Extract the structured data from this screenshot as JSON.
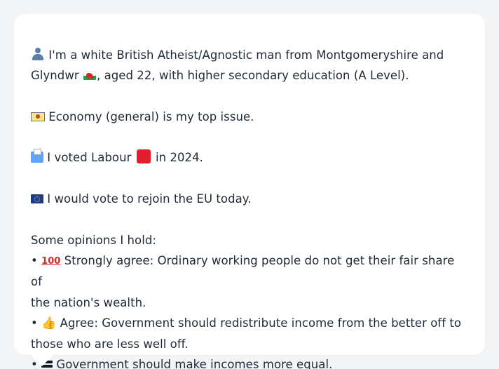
{
  "profile": {
    "line1_a": "I'm a white British Atheist/Agnostic man from Montgomeryshire and",
    "line1_b": "Glyndwr",
    "line1_c": ", aged 22, with higher secondary education (A Level).",
    "economy": "Economy (general) is my top issue.",
    "vote_a": "I voted Labour",
    "vote_b": "in 2024.",
    "eu": "I would vote to rejoin the EU today."
  },
  "opinions": {
    "heading": "Some opinions I hold:",
    "bullet": "•",
    "items": [
      {
        "icon": "hundred-icon",
        "icon_text": "100",
        "line_a": "Strongly agree: Ordinary working people do not get their fair share of",
        "line_b": "the nation's wealth."
      },
      {
        "icon": "thumbs-up-icon",
        "icon_text": "👍",
        "line_a": "Agree: Government should redistribute income from the better off to",
        "line_b": "those who are less well off."
      },
      {
        "icon": "equals-icon",
        "line_a": "Government should make incomes more equal."
      }
    ]
  },
  "colors": {
    "page_bg": "#f3f4f6",
    "card_bg": "#ffffff",
    "text": "#1f2937",
    "labour_red": "#e11d2e"
  }
}
